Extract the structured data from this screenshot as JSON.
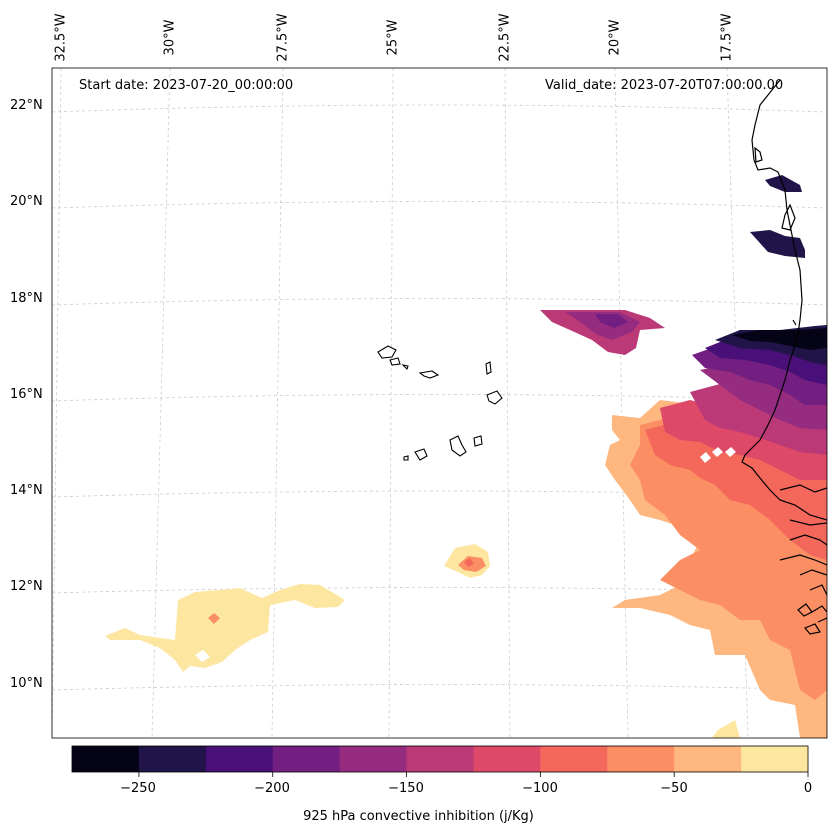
{
  "map": {
    "start_date": "Start date: 2023-07-20_00:00:00",
    "valid_date": "Valid_date: 2023-07-20T07:00:00.00",
    "lon_labels": [
      "32.5°W",
      "30°W",
      "27.5°W",
      "25°W",
      "22.5°W",
      "20°W",
      "17.5°W"
    ],
    "lat_labels": [
      "22°N",
      "20°N",
      "18°N",
      "16°N",
      "14°N",
      "12°N",
      "10°N"
    ],
    "gridlines": true
  },
  "colorbar": {
    "title": "925 hPa convective inhibition (j/Kg)",
    "tick_labels": [
      "−250",
      "−200",
      "−150",
      "−100",
      "−50",
      "0"
    ],
    "levels": [
      -275,
      -250,
      -225,
      -200,
      -175,
      -150,
      -125,
      -100,
      -75,
      -50,
      -25,
      0
    ],
    "colors": [
      "#050416",
      "#211448",
      "#4a1079",
      "#721f81",
      "#962c80",
      "#bc3978",
      "#de4968",
      "#f4685c",
      "#fc8e64",
      "#feb77e",
      "#fde6a0"
    ]
  }
}
